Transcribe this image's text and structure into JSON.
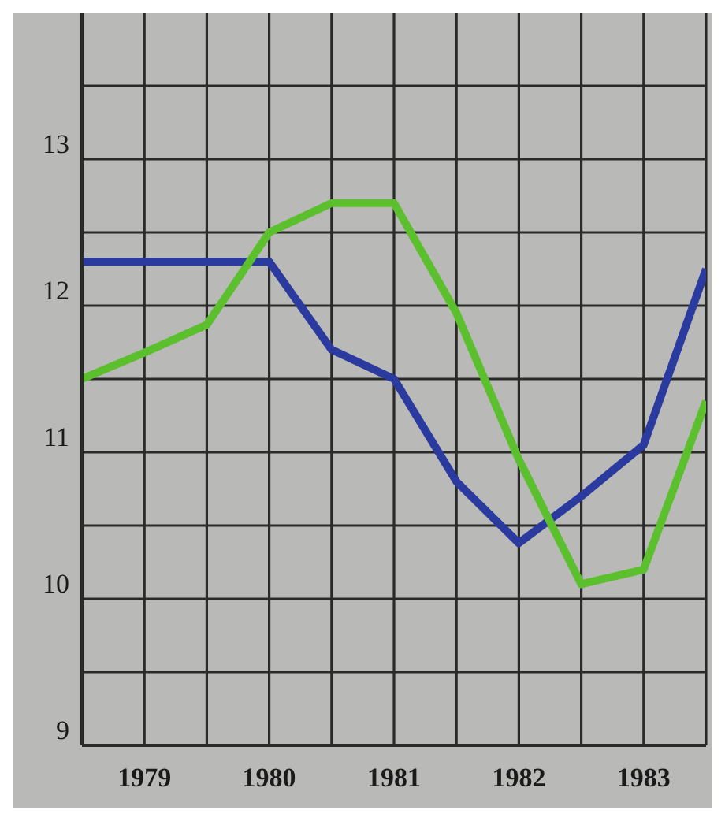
{
  "chart_data": {
    "type": "line",
    "x": [
      1979,
      1979.5,
      1980,
      1980.5,
      1981,
      1981.5,
      1982,
      1982.5,
      1983,
      1983.5,
      1984
    ],
    "series": [
      {
        "color": "#2b3a9e",
        "values": [
          12.3,
          12.3,
          12.3,
          12.3,
          11.7,
          11.5,
          10.8,
          10.38,
          10.7,
          11.05,
          12.25
        ]
      },
      {
        "color": "#5cc02e",
        "values": [
          11.5,
          11.68,
          11.87,
          12.5,
          12.7,
          12.7,
          11.95,
          10.95,
          10.1,
          10.2,
          11.35
        ]
      }
    ],
    "xlim": [
      1979,
      1984
    ],
    "xticks": [
      {
        "value": 1979,
        "label": null
      },
      {
        "value": 1979.5,
        "label": "1979"
      },
      {
        "value": 1980,
        "label": null
      },
      {
        "value": 1980.5,
        "label": "1980"
      },
      {
        "value": 1981,
        "label": null
      },
      {
        "value": 1981.5,
        "label": "1981"
      },
      {
        "value": 1982,
        "label": null
      },
      {
        "value": 1982.5,
        "label": "1982"
      },
      {
        "value": 1983,
        "label": null
      },
      {
        "value": 1983.5,
        "label": "1983"
      },
      {
        "value": 1984,
        "label": null
      }
    ],
    "ylim": [
      9,
      14
    ],
    "yticks": [
      9,
      {
        "value": 9.5,
        "label": null
      },
      10,
      {
        "value": 10.5,
        "label": null
      },
      11,
      {
        "value": 11.5,
        "label": null
      },
      12,
      {
        "value": 12.5,
        "label": null
      },
      13,
      {
        "value": 13.5,
        "label": null
      }
    ],
    "grid": true,
    "marker": "none",
    "line_style": "solid"
  }
}
